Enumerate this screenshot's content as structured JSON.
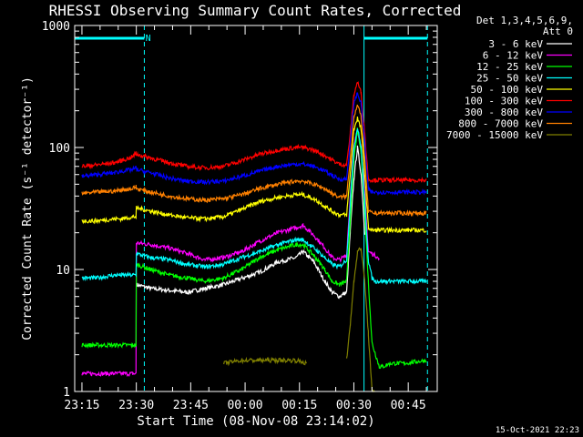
{
  "chart_data": {
    "type": "line",
    "title": "RHESSI Observing Summary Count Rates, Corrected",
    "xlabel": "Start Time (08-Nov-08 23:14:02)",
    "ylabel": "Corrected Count Rate (s⁻¹ detector⁻¹)",
    "y_scale": "log",
    "ylim": [
      1,
      1000
    ],
    "xlim": [
      -1,
      99
    ],
    "x_units": "minutes after 23:14",
    "x_ticks": [
      {
        "x": 1,
        "label": "23:15"
      },
      {
        "x": 16,
        "label": "23:30"
      },
      {
        "x": 31,
        "label": "23:45"
      },
      {
        "x": 46,
        "label": "00:00"
      },
      {
        "x": 61,
        "label": "00:15"
      },
      {
        "x": 76,
        "label": "00:30"
      },
      {
        "x": 91,
        "label": "00:45"
      }
    ],
    "y_ticks": [
      {
        "y": 1,
        "label": "1"
      },
      {
        "y": 10,
        "label": "10"
      },
      {
        "y": 100,
        "label": "100"
      },
      {
        "y": 1000,
        "label": "1000"
      }
    ],
    "legend_header": [
      "Det 1,3,4,5,6,9,",
      "Att 0"
    ],
    "legend_position": "right",
    "footer_date": "15-Oct-2021 22:23",
    "annotations": [
      {
        "text": "N",
        "x": 18.5
      }
    ],
    "vertical_markers": [
      {
        "x": 18.2,
        "style": "dashed",
        "color": "#00ffff"
      },
      {
        "x": 78.8,
        "style": "solid",
        "color": "#00ffff"
      },
      {
        "x": 96.3,
        "style": "dashed",
        "color": "#00ffff"
      }
    ],
    "top_bars": [
      {
        "x0": -1,
        "x1": 18.2,
        "color": "#00ffff"
      },
      {
        "x0": 78.8,
        "x1": 96.3,
        "color": "#00ffff"
      }
    ],
    "series": [
      {
        "name": "3 - 6 keV",
        "color": "#ffffff",
        "x": [
          1,
          16,
          16.1,
          20,
          30,
          40,
          50,
          55,
          60,
          62,
          65,
          68,
          70,
          72,
          74,
          75,
          76,
          77,
          78,
          79,
          80,
          81,
          82,
          83,
          84,
          85,
          86,
          90,
          96
        ],
        "y": [
          null,
          null,
          7.5,
          7.0,
          6.5,
          7.5,
          9.5,
          11.5,
          12.5,
          14,
          11.5,
          8,
          6.5,
          6,
          6.5,
          20,
          55,
          100,
          60,
          20,
          null,
          null,
          null,
          null,
          null,
          null,
          null,
          null,
          null
        ]
      },
      {
        "name": "6 - 12 keV",
        "color": "#ff00ff",
        "x": [
          1,
          5,
          10,
          12,
          15,
          15.9,
          16,
          20,
          25,
          30,
          35,
          40,
          45,
          50,
          55,
          60,
          62,
          65,
          68,
          70,
          72,
          74,
          75,
          76,
          77,
          78,
          79,
          80,
          81,
          82,
          83,
          84,
          86,
          90,
          96
        ],
        "y": [
          1.4,
          1.4,
          1.4,
          1.4,
          1.4,
          1.4,
          16.5,
          16,
          15,
          13.5,
          12,
          12.5,
          14,
          17,
          20,
          22,
          23,
          19,
          15,
          12.5,
          12,
          13,
          40,
          100,
          140,
          100,
          40,
          14,
          13.5,
          13,
          12,
          null,
          null,
          null,
          null
        ]
      },
      {
        "name": "12 - 25 keV",
        "color": "#00ff00",
        "x": [
          1,
          5,
          10,
          12,
          15,
          15.9,
          16,
          20,
          25,
          30,
          35,
          40,
          45,
          50,
          55,
          60,
          62,
          65,
          68,
          70,
          72,
          74,
          75,
          76,
          77,
          78,
          79,
          80,
          81,
          82,
          83,
          84,
          86,
          90,
          96
        ],
        "y": [
          2.4,
          2.4,
          2.4,
          2.4,
          2.4,
          2.4,
          11,
          10,
          9,
          8.5,
          8,
          8.5,
          10,
          12.5,
          14.5,
          16,
          16,
          13,
          10,
          8,
          7.5,
          8,
          25,
          80,
          140,
          90,
          30,
          8,
          2.5,
          2,
          1.6,
          1.6,
          1.7,
          1.7,
          1.8
        ]
      },
      {
        "name": "25 - 50 keV",
        "color": "#00ffff",
        "x": [
          1,
          5,
          10,
          12,
          15,
          15.9,
          16,
          20,
          25,
          30,
          35,
          40,
          45,
          50,
          55,
          60,
          62,
          65,
          68,
          70,
          72,
          74,
          75,
          76,
          77,
          78,
          79,
          80,
          81,
          82,
          83,
          84,
          86,
          90,
          96
        ],
        "y": [
          8.5,
          8.5,
          9,
          9,
          9,
          9,
          13.5,
          12.5,
          12,
          11,
          10.5,
          11,
          12.5,
          14,
          16,
          17.5,
          17.5,
          15,
          12.5,
          11,
          10.5,
          12,
          35,
          100,
          145,
          100,
          35,
          12,
          8.5,
          8,
          8,
          8,
          8,
          8,
          8
        ]
      },
      {
        "name": "50 - 100 keV",
        "color": "#ffff00",
        "x": [
          1,
          5,
          10,
          12,
          15,
          15.9,
          16,
          20,
          25,
          30,
          35,
          40,
          45,
          50,
          55,
          60,
          62,
          65,
          68,
          70,
          72,
          74,
          75,
          76,
          77,
          78,
          79,
          80,
          81,
          82,
          83,
          84,
          86,
          90,
          96
        ],
        "y": [
          25,
          25,
          26,
          26,
          27,
          27,
          32,
          30,
          28,
          26.5,
          26,
          27,
          31,
          36,
          39,
          41,
          41,
          38,
          33,
          30,
          28,
          28,
          60,
          140,
          175,
          140,
          60,
          22,
          21,
          21,
          21,
          21,
          21,
          21,
          21
        ]
      },
      {
        "name": "100 - 300 keV",
        "color": "#ff0000",
        "x": [
          1,
          5,
          10,
          12,
          15,
          15.9,
          16,
          20,
          25,
          30,
          35,
          40,
          45,
          50,
          55,
          60,
          62,
          65,
          68,
          70,
          72,
          74,
          75,
          76,
          77,
          78,
          79,
          80,
          81,
          82,
          83,
          84,
          86,
          90,
          96
        ],
        "y": [
          70,
          72,
          75,
          78,
          84,
          90,
          88,
          82,
          75,
          70,
          68,
          70,
          78,
          88,
          95,
          100,
          100,
          95,
          86,
          79,
          73,
          72,
          130,
          270,
          345,
          280,
          130,
          55,
          54,
          54,
          54,
          54,
          54,
          54,
          54
        ]
      },
      {
        "name": "300 - 800 keV",
        "color": "#0000ff",
        "x": [
          1,
          5,
          10,
          12,
          15,
          15.9,
          16,
          20,
          25,
          30,
          35,
          40,
          45,
          50,
          55,
          60,
          62,
          65,
          68,
          70,
          72,
          74,
          75,
          76,
          77,
          78,
          79,
          80,
          81,
          82,
          83,
          84,
          86,
          90,
          96
        ],
        "y": [
          58,
          60,
          62,
          64,
          66,
          68,
          66,
          62,
          56,
          53,
          52,
          53,
          58,
          64,
          70,
          73,
          73,
          70,
          64,
          59,
          55,
          55,
          110,
          230,
          280,
          230,
          110,
          45,
          43,
          43,
          43,
          43,
          43,
          43,
          43
        ]
      },
      {
        "name": "800 - 7000 keV",
        "color": "#ff8000",
        "x": [
          1,
          5,
          10,
          12,
          15,
          15.9,
          16,
          20,
          25,
          30,
          35,
          40,
          45,
          50,
          55,
          60,
          62,
          65,
          68,
          70,
          72,
          74,
          75,
          76,
          77,
          78,
          79,
          80,
          81,
          82,
          83,
          84,
          86,
          90,
          96
        ],
        "y": [
          42,
          43,
          44,
          45,
          46,
          48,
          46,
          43,
          40,
          38,
          37,
          38,
          41,
          46,
          50,
          53,
          53,
          50,
          46,
          42,
          39,
          40,
          80,
          180,
          220,
          180,
          80,
          30,
          29,
          29,
          29,
          29,
          29,
          29,
          29
        ]
      },
      {
        "name": "7000 - 15000 keV",
        "color": "#808000",
        "x": [
          1,
          40,
          40.1,
          45,
          50,
          55,
          60,
          63,
          63.1,
          70,
          72,
          73,
          74,
          75,
          76,
          77,
          78,
          79,
          80,
          81,
          82,
          96
        ],
        "y": [
          null,
          null,
          1.7,
          1.8,
          1.8,
          1.8,
          1.8,
          1.7,
          null,
          null,
          null,
          null,
          1.8,
          3.5,
          8,
          14,
          15,
          8,
          3,
          1,
          1,
          null
        ]
      }
    ]
  }
}
